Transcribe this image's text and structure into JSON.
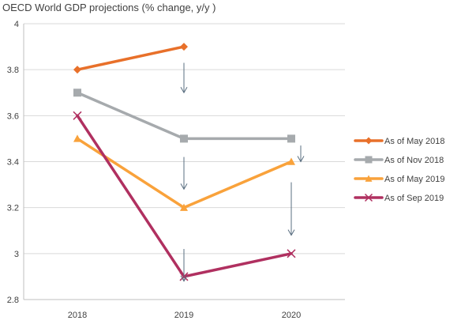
{
  "chart_data": {
    "type": "line",
    "title": "OECD World GDP projections (% change, y/y )",
    "xlabel": "",
    "ylabel": "",
    "categories": [
      "2018",
      "2019",
      "2020"
    ],
    "ylim": [
      2.8,
      4
    ],
    "yticks": [
      2.8,
      3,
      3.2,
      3.4,
      3.6,
      3.8,
      4
    ],
    "ytick_labels": [
      "2.8",
      "3",
      "3.2",
      "3.4",
      "3.6",
      "3.8",
      "4"
    ],
    "grid": true,
    "legend_position": "right",
    "series": [
      {
        "name": "As of May 2018",
        "color": "#E8702A",
        "marker": "diamond",
        "values": [
          3.8,
          3.9,
          null
        ]
      },
      {
        "name": "As of Nov 2018",
        "color": "#A6AAAD",
        "marker": "square",
        "values": [
          3.7,
          3.5,
          3.5
        ]
      },
      {
        "name": "As of May 2019",
        "color": "#F9A23B",
        "marker": "triangle",
        "values": [
          3.5,
          3.2,
          3.4
        ]
      },
      {
        "name": "As of Sep 2019",
        "color": "#B03060",
        "marker": "cross",
        "values": [
          3.6,
          2.9,
          3.0
        ]
      }
    ],
    "annotations": [
      {
        "type": "arrow-down",
        "category": "2019",
        "from": 3.83,
        "to": 3.7
      },
      {
        "type": "arrow-down",
        "category": "2019",
        "from": 3.42,
        "to": 3.28
      },
      {
        "type": "arrow-down",
        "category": "2019",
        "from": 3.02,
        "to": 2.88
      },
      {
        "type": "arrow-down",
        "category": "2020",
        "from": 3.47,
        "to": 3.4
      },
      {
        "type": "arrow-down",
        "category": "2020",
        "from": 3.31,
        "to": 3.08
      }
    ],
    "colors": {
      "axis": "#BFBFBF",
      "grid": "#D9D9D9",
      "arrow": "#5A6F80",
      "text": "#404040"
    }
  }
}
